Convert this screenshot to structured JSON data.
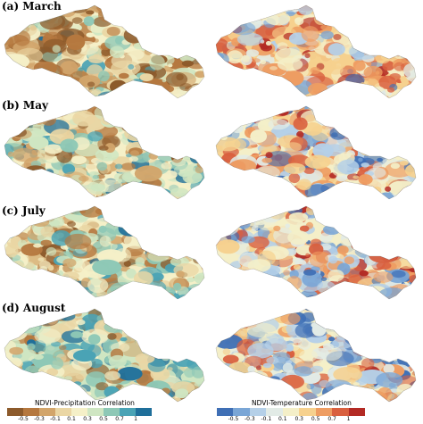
{
  "panels": [
    {
      "label": "(a)  March"
    },
    {
      "label": "(b)  May"
    },
    {
      "label": "(c)  July"
    },
    {
      "label": "(d)  August"
    }
  ],
  "legends": {
    "precipitation": {
      "title": "NDVI-Precipitation Correlation",
      "ticks": [
        "-0.5",
        "-0.3",
        "-0.1",
        "0.1",
        "0.3",
        "0.5",
        "0.7",
        "1"
      ],
      "colors": [
        "#8c5a2b",
        "#b5783f",
        "#d2a56b",
        "#ead6a4",
        "#f5f0c8",
        "#cfe6c2",
        "#8ec8b6",
        "#4aa3b5",
        "#1f6f9a"
      ]
    },
    "temperature": {
      "title": "NDVI-Temperature Correlation",
      "ticks": [
        "-0.5",
        "-0.3",
        "-0.1",
        "0.1",
        "0.3",
        "0.5",
        "0.7",
        "1"
      ],
      "colors": [
        "#3f6fb5",
        "#7aa6d6",
        "#b5d0e8",
        "#e2ebe6",
        "#f4efc8",
        "#f6d18e",
        "#ee9d62",
        "#d9603f",
        "#b32a24"
      ]
    }
  }
}
